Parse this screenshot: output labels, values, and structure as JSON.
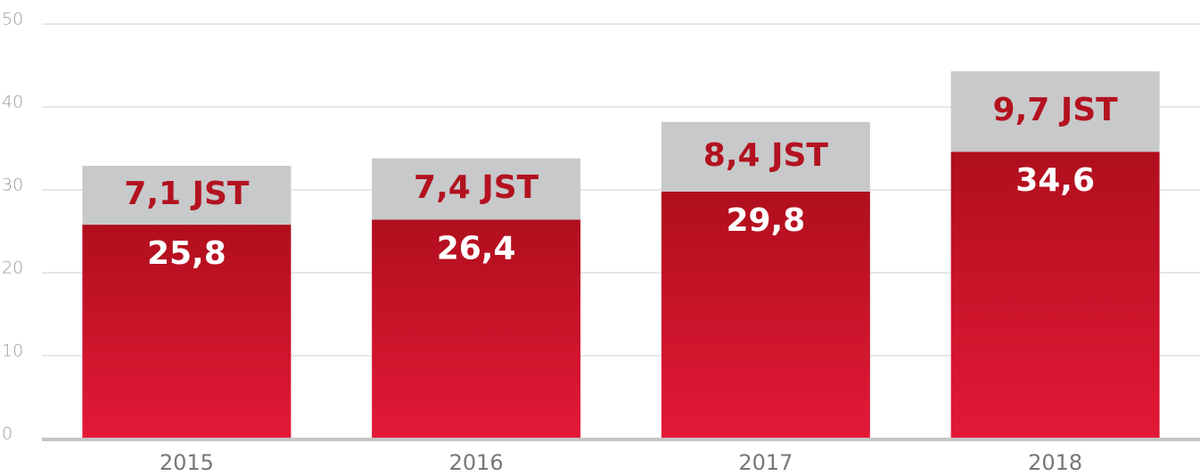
{
  "chart_data": {
    "type": "stacked_bar",
    "categories": [
      "2015",
      "2016",
      "2017",
      "2018"
    ],
    "series": [
      {
        "color": "#c8102e",
        "values": [
          25.8,
          26.4,
          29.8,
          34.6
        ],
        "value_labels": [
          "25,8",
          "26,4",
          "29,8",
          "34,6"
        ]
      },
      {
        "color": "#c8c9cb",
        "values": [
          7.1,
          7.4,
          8.4,
          9.7
        ],
        "value_labels": [
          "7,1 JST",
          "7,4 JST",
          "8,4 JST",
          "9,7 JST"
        ]
      }
    ],
    "ylim": [
      0,
      50
    ],
    "yticks": [
      0,
      10,
      20,
      30,
      40,
      50
    ],
    "grid": true
  }
}
